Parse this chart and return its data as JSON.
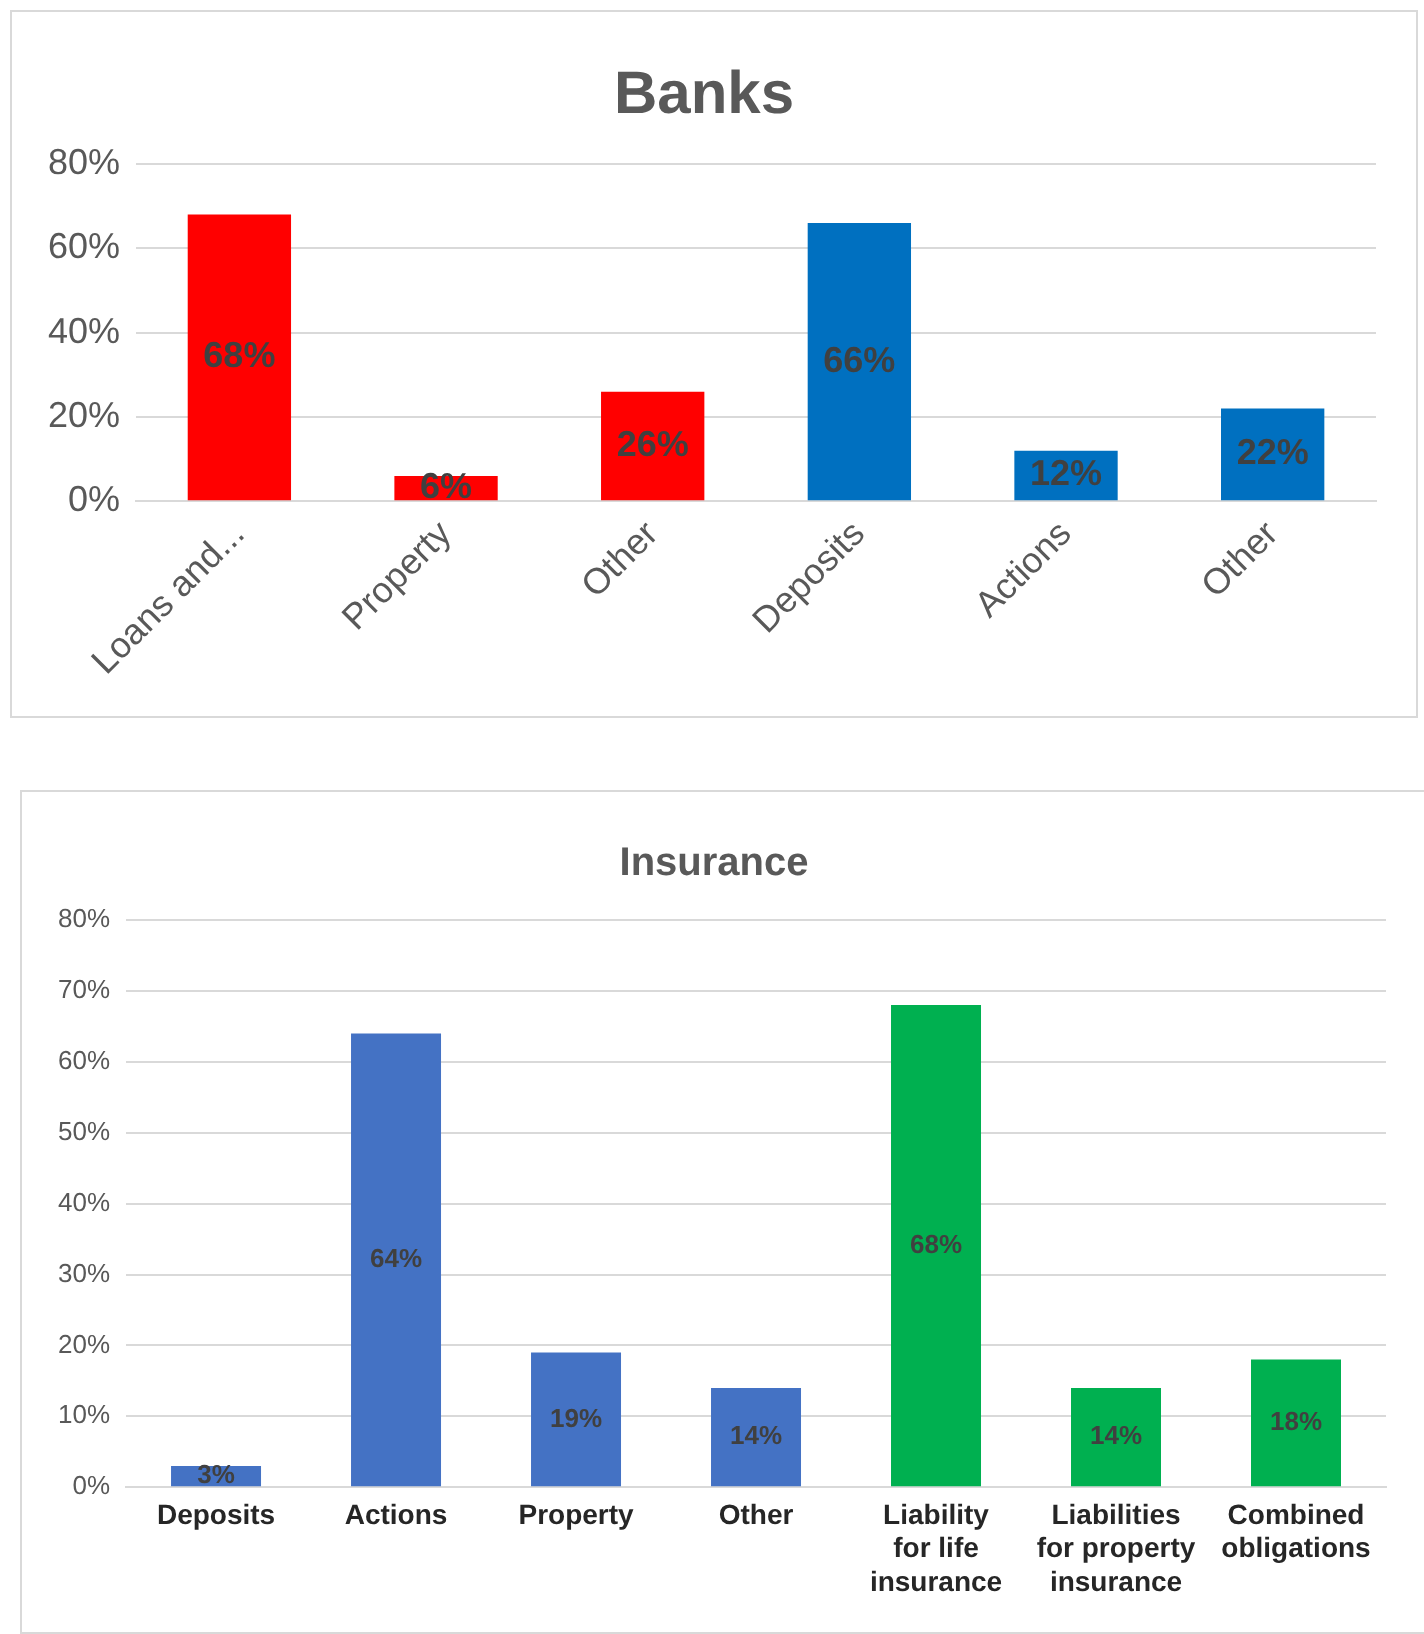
{
  "chart_data": [
    {
      "type": "bar",
      "title": "Banks",
      "categories": [
        "Loans and...",
        "Property",
        "Other",
        "Deposits",
        "Actions",
        "Other"
      ],
      "series": [
        {
          "values": [
            68,
            6,
            26,
            66,
            12,
            22
          ],
          "colors": [
            "#ff0000",
            "#ff0000",
            "#ff0000",
            "#0070c0",
            "#0070c0",
            "#0070c0"
          ],
          "value_labels": [
            "68%",
            "6%",
            "26%",
            "66%",
            "12%",
            "22%"
          ]
        }
      ],
      "ylim": [
        0,
        80
      ],
      "yticks": [
        {
          "value": 0,
          "label": "0%"
        },
        {
          "value": 20,
          "label": "20%"
        },
        {
          "value": 40,
          "label": "40%"
        },
        {
          "value": 60,
          "label": "60%"
        },
        {
          "value": 80,
          "label": "80%"
        }
      ],
      "grid": "y",
      "legend": false
    },
    {
      "type": "bar",
      "title": "Insurance",
      "categories": [
        "Deposits",
        "Actions",
        "Property",
        "Other",
        "Liability for life insurance",
        "Liabilities for property insurance",
        "Combined obligations"
      ],
      "series": [
        {
          "values": [
            3,
            64,
            19,
            14,
            68,
            14,
            18
          ],
          "colors": [
            "#4472c4",
            "#4472c4",
            "#4472c4",
            "#4472c4",
            "#00b050",
            "#00b050",
            "#00b050"
          ],
          "value_labels": [
            "3%",
            "64%",
            "19%",
            "14%",
            "68%",
            "14%",
            "18%"
          ]
        }
      ],
      "ylim": [
        0,
        80
      ],
      "yticks": [
        {
          "value": 0,
          "label": "0%"
        },
        {
          "value": 10,
          "label": "10%"
        },
        {
          "value": 20,
          "label": "20%"
        },
        {
          "value": 30,
          "label": "30%"
        },
        {
          "value": 40,
          "label": "40%"
        },
        {
          "value": 50,
          "label": "50%"
        },
        {
          "value": 60,
          "label": "60%"
        },
        {
          "value": 70,
          "label": "70%"
        },
        {
          "value": 80,
          "label": "80%"
        }
      ],
      "grid": "y",
      "legend": false
    }
  ]
}
